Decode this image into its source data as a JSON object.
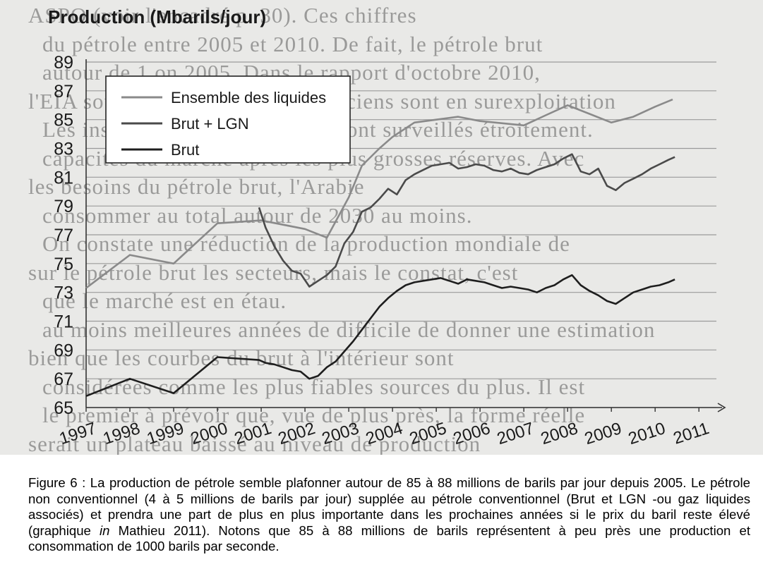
{
  "chart_data": {
    "type": "line",
    "title": "Production (Mbarils/jour)",
    "xlabel": "",
    "ylabel": "",
    "y_ticks": [
      "65",
      "67",
      "69",
      "71",
      "73",
      "75",
      "77",
      "79",
      "81",
      "83",
      "85",
      "87",
      "89"
    ],
    "x_ticks": [
      "1997",
      "1998",
      "1999",
      "2000",
      "2001",
      "2002",
      "2003",
      "2004",
      "2005",
      "2006",
      "2007",
      "2008",
      "2009",
      "2010",
      "2011"
    ],
    "ylim": [
      65,
      90
    ],
    "xlim": [
      1997,
      2011.4
    ],
    "grid": true,
    "legend_position": "top-left",
    "series": [
      {
        "name": "Ensemble des liquides",
        "color": "#8a8a8a",
        "x": [
          1997,
          1998,
          1999,
          2000,
          2001,
          2002,
          2002.5,
          2003,
          2003.3,
          2003.7,
          2004,
          2004.5,
          2005,
          2005.5,
          2006,
          2007,
          2007.5,
          2008,
          2008.5,
          2009,
          2009.5,
          2010,
          2010.4
        ],
        "y": [
          73.3,
          75.6,
          75.0,
          77.8,
          78.0,
          77.4,
          76.8,
          79.6,
          81.8,
          83.0,
          83.8,
          84.8,
          85.0,
          85.2,
          84.9,
          84.6,
          85.3,
          86.0,
          85.4,
          84.8,
          85.2,
          85.9,
          86.4
        ]
      },
      {
        "name": "Brut + LGN",
        "color": "#4a4a4a",
        "x": [
          2000.95,
          2001.1,
          2001.3,
          2001.5,
          2001.7,
          2001.9,
          2002.1,
          2002.3,
          2002.5,
          2002.7,
          2002.9,
          2003.1,
          2003.3,
          2003.5,
          2003.7,
          2003.9,
          2004.1,
          2004.3,
          2004.5,
          2004.7,
          2004.9,
          2005.1,
          2005.3,
          2005.5,
          2005.7,
          2005.9,
          2006.1,
          2006.3,
          2006.5,
          2006.7,
          2006.9,
          2007.1,
          2007.3,
          2007.5,
          2007.7,
          2007.9,
          2008.1,
          2008.3,
          2008.5,
          2008.7,
          2008.9,
          2009.1,
          2009.3,
          2009.5,
          2009.7,
          2009.9,
          2010.1,
          2010.3,
          2010.45
        ],
        "y": [
          78.9,
          77.5,
          76.2,
          75.2,
          74.5,
          74.3,
          73.4,
          73.8,
          74.2,
          74.8,
          76.4,
          77.2,
          78.6,
          78.9,
          79.5,
          80.2,
          79.8,
          80.8,
          81.2,
          81.5,
          81.8,
          81.9,
          82.0,
          81.6,
          81.7,
          81.9,
          81.8,
          81.5,
          81.4,
          81.6,
          81.3,
          81.2,
          81.5,
          81.7,
          81.9,
          82.3,
          82.6,
          81.4,
          81.2,
          81.6,
          80.4,
          80.1,
          80.6,
          80.9,
          81.2,
          81.6,
          81.9,
          82.2,
          82.4
        ]
      },
      {
        "name": "Brut",
        "color": "#1e1e1e",
        "x": [
          1997,
          1998,
          1999,
          2000,
          2000.95,
          2001.1,
          2001.3,
          2001.5,
          2001.7,
          2001.9,
          2002.1,
          2002.3,
          2002.5,
          2002.7,
          2002.9,
          2003.1,
          2003.3,
          2003.5,
          2003.7,
          2003.9,
          2004.1,
          2004.3,
          2004.5,
          2004.7,
          2004.9,
          2005.1,
          2005.3,
          2005.5,
          2005.7,
          2005.9,
          2006.1,
          2006.3,
          2006.5,
          2006.7,
          2006.9,
          2007.1,
          2007.3,
          2007.5,
          2007.7,
          2007.9,
          2008.1,
          2008.3,
          2008.5,
          2008.7,
          2008.9,
          2009.1,
          2009.3,
          2009.5,
          2009.7,
          2009.9,
          2010.1,
          2010.3,
          2010.45
        ],
        "y": [
          65.8,
          67.0,
          66.0,
          68.5,
          68.3,
          68.1,
          68.0,
          67.8,
          67.6,
          67.5,
          67.0,
          67.2,
          67.8,
          68.2,
          68.9,
          69.6,
          70.4,
          71.2,
          72.0,
          72.6,
          73.1,
          73.5,
          73.7,
          73.8,
          73.9,
          74.0,
          73.8,
          73.6,
          73.9,
          73.8,
          73.7,
          73.5,
          73.3,
          73.4,
          73.3,
          73.2,
          73.0,
          73.3,
          73.5,
          73.9,
          74.2,
          73.5,
          73.1,
          72.8,
          72.4,
          72.2,
          72.6,
          73.0,
          73.2,
          73.4,
          73.5,
          73.7,
          73.9
        ]
      }
    ]
  },
  "caption": {
    "prefix": "Figure 6 : La production de pétrole semble plafonner autour de 85 à 88 millions de barils par jour depuis 2005. Le pétrole non conventionnel (4 à 5 millions de barils par jour) supplée au pétrole conventionnel (Brut et LGN -ou gaz liquides associés) et prendra une part de plus en plus importante dans les prochaines années si le prix du baril reste élevé (graphique ",
    "italic": "in",
    "suffix": " Mathieu 2011). Notons que 85 à 88 millions de barils représentent à peu près une production et consommation de 1000 barils par seconde."
  },
  "background_text": [
    "ASPO (voir l'encadré p. 30). Ces chiffres",
    "du pétrole entre 2005 et 2010. De fait, le pétrole brut",
    "autour de 1 on 2005. Dans le rapport d'octobre 2010,",
    "l'EIA souligne que des champs anciens sont en surexploitation",
    "Les instabilités du pétrole brut sont surveillés étroitement.",
    "capacités du marché après les plus grosses réserves. Avec",
    "les besoins du pétrole brut, l'Arabie",
    "consommer au total autour de 2030 au moins.",
    "On constate une réduction de la production mondiale de",
    "sur le pétrole brut les secteurs, mais le constat, c'est",
    "que le marché est en étau.",
    "au moins meilleures années de difficile de donner une estimation",
    "bien que les courbes du brut à l'intérieur sont",
    "considérées comme les plus fiables sources du plus. Il est",
    "le premier à prévoir que, vue de plus près, la forme réelle",
    "serait un plateau baissé au niveau de production"
  ]
}
